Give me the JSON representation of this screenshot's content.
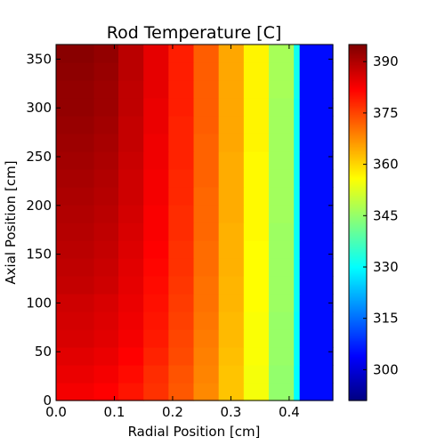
{
  "chart_data": {
    "type": "heatmap",
    "title": "Rod Temperature [C]",
    "xlabel": "Radial Position [cm]",
    "ylabel": "Axial Position [cm]",
    "xlim": [
      0.0,
      0.475
    ],
    "ylim": [
      0,
      365
    ],
    "x_ticks": [
      0.0,
      0.1,
      0.2,
      0.3,
      0.4
    ],
    "x_tick_labels": [
      "0.0",
      "0.1",
      "0.2",
      "0.3",
      "0.4"
    ],
    "y_ticks": [
      0,
      50,
      100,
      150,
      200,
      250,
      300,
      350
    ],
    "y_tick_labels": [
      "0",
      "50",
      "100",
      "150",
      "200",
      "250",
      "300",
      "350"
    ],
    "radial_bin_edges": [
      0.0,
      0.065,
      0.107,
      0.15,
      0.193,
      0.236,
      0.279,
      0.322,
      0.365,
      0.408,
      0.418,
      0.475
    ],
    "axial_bin_edges": [
      0,
      18.3,
      36.5,
      54.8,
      73,
      91.3,
      109.5,
      127.8,
      146,
      164.3,
      182.5,
      200.8,
      219,
      237.3,
      255.5,
      273.8,
      292,
      310.3,
      328.5,
      346.8,
      365
    ],
    "temperatures": [
      [
        383.0,
        382.0,
        380.0,
        377.0,
        373.0,
        368.0,
        362.0,
        355.0,
        345.0,
        330.0,
        305.0
      ],
      [
        384.0,
        383.0,
        381.0,
        377.5,
        373.5,
        368.5,
        362.0,
        355.0,
        345.0,
        330.0,
        305.0
      ],
      [
        385.0,
        384.0,
        382.0,
        378.5,
        374.5,
        369.0,
        362.5,
        355.5,
        345.5,
        330.5,
        305.0
      ],
      [
        386.0,
        385.0,
        383.0,
        379.5,
        375.0,
        369.5,
        363.0,
        355.5,
        345.5,
        330.5,
        305.0
      ],
      [
        386.5,
        385.5,
        383.5,
        380.0,
        375.5,
        370.0,
        363.0,
        355.5,
        345.5,
        330.5,
        305.0
      ],
      [
        387.0,
        386.0,
        384.0,
        380.5,
        376.0,
        370.5,
        363.5,
        356.0,
        346.0,
        331.0,
        305.0
      ],
      [
        388.0,
        387.0,
        384.5,
        381.0,
        376.5,
        370.5,
        363.5,
        356.0,
        346.0,
        331.0,
        305.0
      ],
      [
        388.5,
        387.5,
        385.0,
        381.5,
        377.0,
        371.0,
        364.0,
        356.0,
        346.0,
        331.0,
        305.0
      ],
      [
        389.0,
        388.0,
        385.5,
        382.0,
        377.0,
        371.0,
        364.0,
        356.0,
        346.0,
        331.0,
        305.0
      ],
      [
        389.5,
        388.5,
        386.0,
        382.5,
        377.5,
        371.5,
        364.0,
        356.5,
        346.0,
        331.0,
        305.0
      ],
      [
        390.0,
        389.0,
        386.5,
        382.5,
        377.5,
        371.5,
        364.5,
        356.5,
        346.5,
        331.0,
        305.0
      ],
      [
        390.5,
        389.5,
        387.0,
        383.0,
        378.0,
        371.5,
        364.5,
        356.5,
        346.5,
        331.0,
        305.0
      ],
      [
        391.0,
        390.0,
        387.0,
        383.0,
        378.0,
        372.0,
        364.5,
        356.5,
        346.5,
        331.0,
        305.0
      ],
      [
        391.5,
        390.5,
        387.5,
        383.5,
        378.5,
        372.0,
        364.5,
        356.5,
        346.5,
        331.0,
        305.0
      ],
      [
        392.0,
        391.0,
        388.0,
        383.5,
        378.5,
        372.0,
        365.0,
        357.0,
        346.5,
        331.0,
        305.0
      ],
      [
        392.5,
        391.5,
        388.0,
        384.0,
        378.5,
        372.5,
        365.0,
        357.0,
        346.5,
        331.0,
        305.0
      ],
      [
        393.0,
        392.0,
        388.5,
        384.0,
        379.0,
        372.5,
        365.0,
        357.0,
        346.5,
        331.0,
        305.0
      ],
      [
        393.0,
        392.0,
        388.5,
        384.5,
        379.0,
        372.5,
        365.0,
        357.0,
        347.0,
        331.5,
        305.0
      ],
      [
        393.5,
        392.5,
        389.0,
        384.5,
        379.0,
        372.5,
        365.0,
        357.0,
        347.0,
        331.5,
        305.0
      ],
      [
        394.0,
        393.0,
        389.0,
        384.5,
        379.0,
        372.5,
        365.0,
        357.0,
        347.0,
        331.5,
        305.0
      ]
    ],
    "colorbar": {
      "colormap": "jet",
      "vmin": 291,
      "vmax": 395,
      "ticks": [
        300,
        315,
        330,
        345,
        360,
        375,
        390
      ],
      "tick_labels": [
        "300",
        "315",
        "330",
        "345",
        "360",
        "375",
        "390"
      ]
    }
  }
}
